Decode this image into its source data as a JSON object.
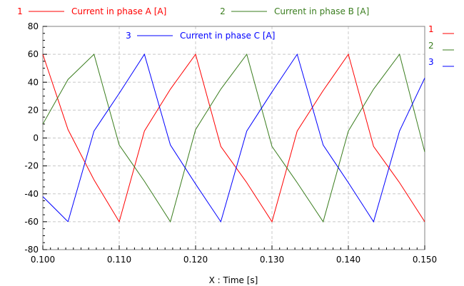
{
  "chart_data": {
    "type": "line",
    "xlabel": "X : Time [s]",
    "ylabel": "",
    "title": "",
    "xlim": [
      0.1,
      0.15
    ],
    "ylim": [
      -80,
      80
    ],
    "xticks": [
      0.1,
      0.11,
      0.12,
      0.13,
      0.14,
      0.15
    ],
    "xtick_labels": [
      "0.100",
      "0.110",
      "0.120",
      "0.130",
      "0.140",
      "0.150"
    ],
    "yticks": [
      -80,
      -60,
      -40,
      -20,
      0,
      20,
      40,
      60,
      80
    ],
    "ytick_labels": [
      "-80",
      "-60",
      "-40",
      "-20",
      "0",
      "20",
      "40",
      "60",
      "80"
    ],
    "grid": true,
    "legend_position": "top",
    "series": [
      {
        "index": "1",
        "name": "Current in phase A [A]",
        "color": "#ff0000",
        "points": [
          [
            0.1,
            60
          ],
          [
            0.1033,
            6
          ],
          [
            0.1067,
            -30
          ],
          [
            0.11,
            -60
          ],
          [
            0.1133,
            5
          ],
          [
            0.1167,
            35
          ],
          [
            0.12,
            60
          ],
          [
            0.1233,
            -6
          ],
          [
            0.1267,
            -32
          ],
          [
            0.13,
            -60
          ],
          [
            0.1333,
            5
          ],
          [
            0.1367,
            34
          ],
          [
            0.14,
            60
          ],
          [
            0.1433,
            -6
          ],
          [
            0.1467,
            -32
          ],
          [
            0.15,
            -60
          ]
        ]
      },
      {
        "index": "2",
        "name": "Current in phase B [A]",
        "color": "#3a7d1e",
        "points": [
          [
            0.1,
            10
          ],
          [
            0.1033,
            42
          ],
          [
            0.1067,
            60
          ],
          [
            0.11,
            -5
          ],
          [
            0.1133,
            -31
          ],
          [
            0.1167,
            -60
          ],
          [
            0.12,
            6
          ],
          [
            0.1233,
            35
          ],
          [
            0.1267,
            60
          ],
          [
            0.13,
            -6
          ],
          [
            0.1333,
            -32
          ],
          [
            0.1367,
            -60
          ],
          [
            0.14,
            5
          ],
          [
            0.1433,
            35
          ],
          [
            0.1467,
            60
          ],
          [
            0.15,
            -10
          ]
        ]
      },
      {
        "index": "3",
        "name": "Current in phase C [A]",
        "color": "#0000ff",
        "points": [
          [
            0.1,
            -42
          ],
          [
            0.1033,
            -60
          ],
          [
            0.1067,
            5
          ],
          [
            0.11,
            32
          ],
          [
            0.1133,
            60
          ],
          [
            0.1167,
            -5
          ],
          [
            0.12,
            -33
          ],
          [
            0.1233,
            -60
          ],
          [
            0.1267,
            5
          ],
          [
            0.13,
            33
          ],
          [
            0.1333,
            60
          ],
          [
            0.1367,
            -5
          ],
          [
            0.14,
            -32
          ],
          [
            0.1433,
            -60
          ],
          [
            0.1467,
            5
          ],
          [
            0.15,
            43
          ]
        ]
      }
    ]
  }
}
